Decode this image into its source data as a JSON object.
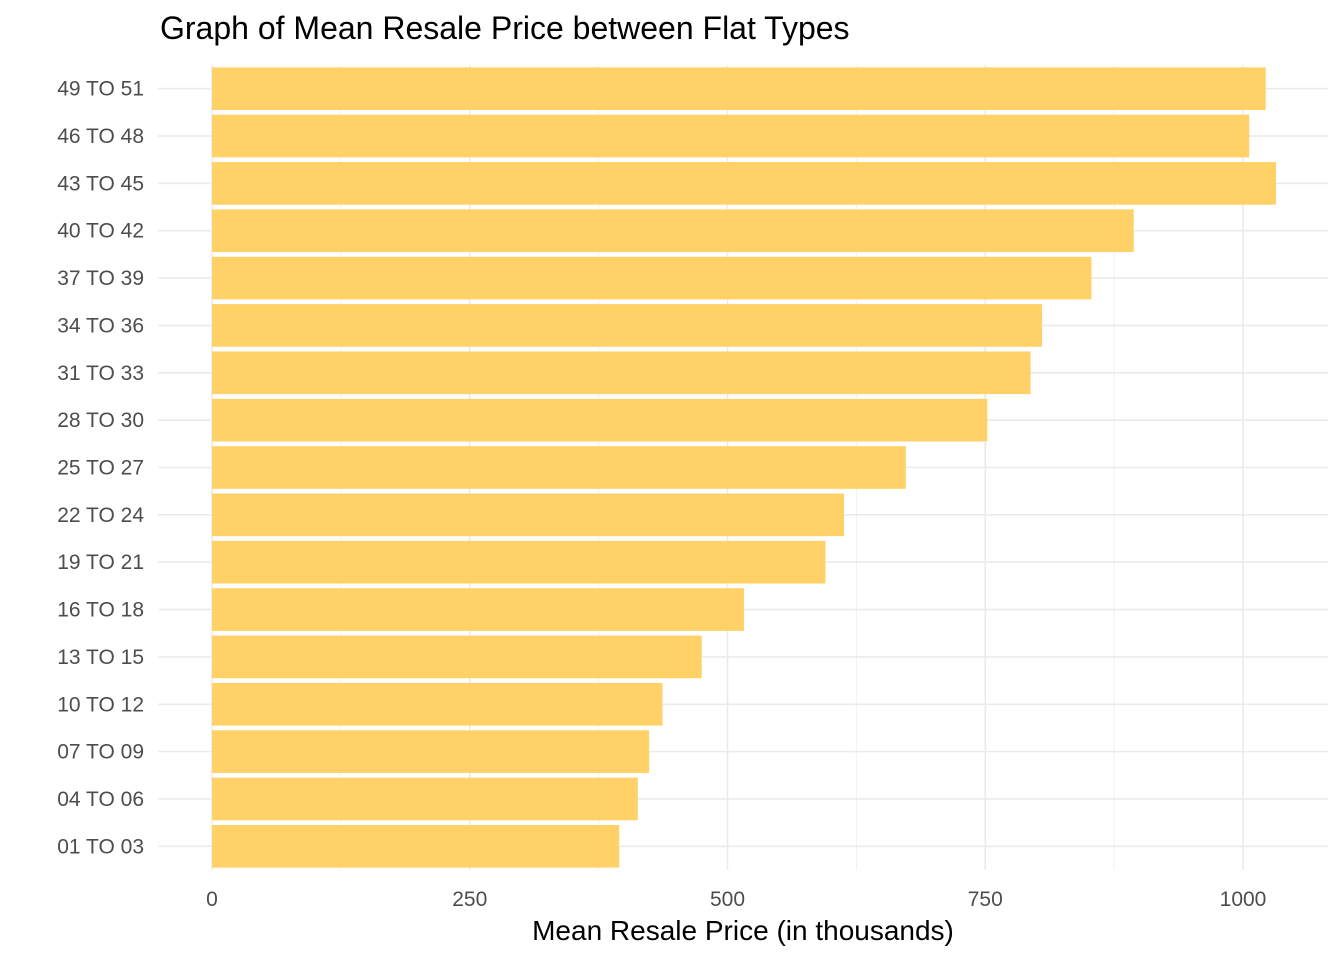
{
  "chart_data": {
    "type": "bar",
    "orientation": "horizontal",
    "title": "Graph of Mean Resale Price between Flat Types",
    "xlabel": "Mean Resale Price (in thousands)",
    "ylabel": "",
    "xlim": [
      0,
      1050
    ],
    "x_ticks": [
      "0",
      "250",
      "500",
      "750",
      "1000"
    ],
    "grid": true,
    "bar_color": "#FFD166",
    "categories": [
      "01 TO 03",
      "04 TO 06",
      "07 TO 09",
      "10 TO 12",
      "13 TO 15",
      "16 TO 18",
      "19 TO 21",
      "22 TO 24",
      "25 TO 27",
      "28 TO 30",
      "31 TO 33",
      "34 TO 36",
      "37 TO 39",
      "40 TO 42",
      "43 TO 45",
      "46 TO 48",
      "49 TO 51"
    ],
    "values": [
      395,
      413,
      424,
      437,
      475,
      516,
      595,
      613,
      673,
      752,
      794,
      805,
      853,
      894,
      1032,
      1006,
      1022
    ]
  }
}
